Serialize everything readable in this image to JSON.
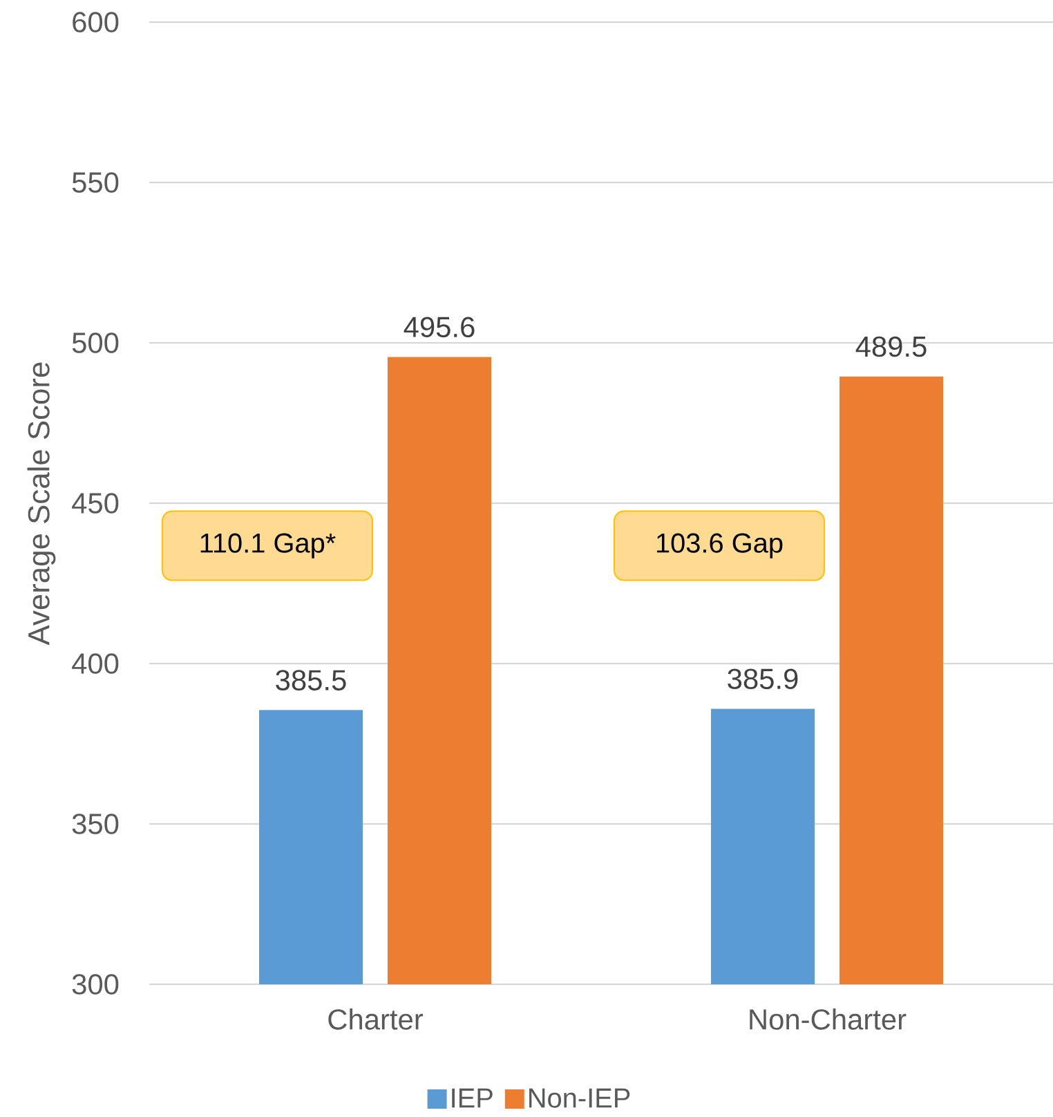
{
  "chart_data": {
    "type": "bar",
    "categories": [
      "Charter",
      "Non-Charter"
    ],
    "series": [
      {
        "name": "IEP",
        "color": "#5b9bd5",
        "values": [
          385.5,
          385.9
        ]
      },
      {
        "name": "Non-IEP",
        "color": "#ed7d31",
        "values": [
          495.6,
          489.5
        ]
      }
    ],
    "ylabel": "Average Scale Score",
    "ylim": [
      300,
      600
    ],
    "yticks": [
      300,
      350,
      400,
      450,
      500,
      550,
      600
    ],
    "grid": "y",
    "legend": "bottom",
    "data_labels": true,
    "annotations": [
      "110.1 Gap*",
      "103.6 Gap"
    ]
  }
}
